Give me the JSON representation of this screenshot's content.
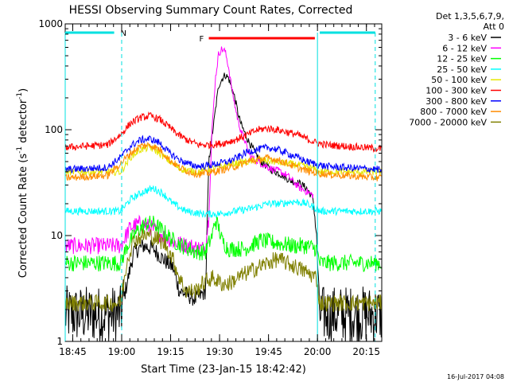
{
  "chart_data": {
    "type": "line",
    "title": "HESSI Observing Summary Count Rates, Corrected",
    "xlabel": "Start Time (23-Jan-15 18:42:42)",
    "ylabel_main": "Corrected Count Rate (s",
    "ylabel_sup1": "-1",
    "ylabel_mid": " detector",
    "ylabel_sup2": "-1",
    "ylabel_end": ")",
    "yscale": "log",
    "xlim_minutes": [
      0,
      97
    ],
    "ylim": [
      1,
      1000
    ],
    "x_ticks": [
      {
        "m": 2.3,
        "label": "18:45"
      },
      {
        "m": 17.3,
        "label": "19:00"
      },
      {
        "m": 32.3,
        "label": "19:15"
      },
      {
        "m": 47.3,
        "label": "19:30"
      },
      {
        "m": 62.3,
        "label": "19:45"
      },
      {
        "m": 77.3,
        "label": "20:00"
      },
      {
        "m": 92.3,
        "label": "20:15"
      }
    ],
    "y_ticks": [
      {
        "v": 1,
        "label": "1"
      },
      {
        "v": 10,
        "label": "10"
      },
      {
        "v": 100,
        "label": "100"
      },
      {
        "v": 1000,
        "label": "1000"
      }
    ],
    "legend_header": [
      "Det 1,3,5,6,7,9,",
      "Att 0"
    ],
    "series": [
      {
        "name": "3 - 6 keV",
        "color": "#000000",
        "points": [
          [
            0,
            1.8
          ],
          [
            17,
            1.8
          ],
          [
            18,
            2.6
          ],
          [
            21,
            7
          ],
          [
            24,
            8
          ],
          [
            27,
            7.5
          ],
          [
            30,
            6
          ],
          [
            33,
            5
          ],
          [
            35,
            3
          ],
          [
            40,
            2.5
          ],
          [
            43,
            3
          ],
          [
            44,
            50
          ],
          [
            46,
            150
          ],
          [
            47,
            260
          ],
          [
            48,
            300
          ],
          [
            49,
            330
          ],
          [
            50,
            310
          ],
          [
            52,
            200
          ],
          [
            53,
            140
          ],
          [
            54,
            110
          ],
          [
            56,
            80
          ],
          [
            58,
            62
          ],
          [
            60,
            50
          ],
          [
            63,
            42
          ],
          [
            66,
            38
          ],
          [
            69,
            33
          ],
          [
            72,
            31
          ],
          [
            74,
            28
          ],
          [
            75,
            25
          ],
          [
            76,
            22
          ],
          [
            77,
            10
          ],
          [
            78,
            1.8
          ],
          [
            97,
            1.8
          ]
        ]
      },
      {
        "name": "6 - 12 keV",
        "color": "#ff00ff",
        "points": [
          [
            0,
            8
          ],
          [
            17,
            8
          ],
          [
            20,
            12
          ],
          [
            23,
            13
          ],
          [
            26,
            12
          ],
          [
            30,
            10
          ],
          [
            34,
            8.5
          ],
          [
            38,
            8
          ],
          [
            42,
            7.5
          ],
          [
            43,
            8
          ],
          [
            44,
            15
          ],
          [
            45,
            100
          ],
          [
            46,
            300
          ],
          [
            47,
            520
          ],
          [
            48,
            580
          ],
          [
            49,
            550
          ],
          [
            50,
            400
          ],
          [
            51,
            250
          ],
          [
            52,
            170
          ],
          [
            53,
            120
          ],
          [
            54,
            95
          ],
          [
            55,
            80
          ],
          [
            56,
            62
          ],
          [
            57,
            55
          ],
          [
            60,
            48
          ],
          [
            63,
            43
          ],
          [
            66,
            40
          ],
          [
            68,
            37
          ],
          [
            70,
            32
          ],
          [
            72,
            28
          ],
          [
            74,
            26
          ],
          [
            75,
            25
          ],
          [
            76,
            24
          ]
        ]
      },
      {
        "name": "12 - 25 keV",
        "color": "#00ff00",
        "points": [
          [
            0,
            5.5
          ],
          [
            17,
            5.5
          ],
          [
            19,
            8
          ],
          [
            22,
            11
          ],
          [
            25,
            13
          ],
          [
            27,
            13
          ],
          [
            30,
            11
          ],
          [
            33,
            9
          ],
          [
            36,
            8
          ],
          [
            40,
            7
          ],
          [
            43,
            7
          ],
          [
            45,
            10
          ],
          [
            46,
            14
          ],
          [
            47,
            12
          ],
          [
            48,
            9
          ],
          [
            50,
            7.5
          ],
          [
            55,
            7.5
          ],
          [
            60,
            9
          ],
          [
            65,
            8.5
          ],
          [
            70,
            8
          ],
          [
            74,
            8
          ],
          [
            77,
            7.5
          ],
          [
            78,
            5.5
          ],
          [
            97,
            5.5
          ]
        ]
      },
      {
        "name": "25 - 50 keV",
        "color": "#00ffff",
        "points": [
          [
            0,
            17
          ],
          [
            17,
            17
          ],
          [
            20,
            22
          ],
          [
            24,
            26
          ],
          [
            27,
            28
          ],
          [
            30,
            25
          ],
          [
            33,
            20
          ],
          [
            37,
            17
          ],
          [
            42,
            16
          ],
          [
            47,
            16
          ],
          [
            52,
            17
          ],
          [
            57,
            18
          ],
          [
            62,
            20
          ],
          [
            66,
            20
          ],
          [
            70,
            21
          ],
          [
            74,
            20
          ],
          [
            77,
            18
          ],
          [
            78,
            17
          ],
          [
            97,
            17
          ]
        ]
      },
      {
        "name": "50 - 100 keV",
        "color": "#e6e600",
        "points": [
          [
            0,
            40
          ],
          [
            17,
            40
          ],
          [
            20,
            55
          ],
          [
            23,
            65
          ],
          [
            26,
            68
          ],
          [
            29,
            60
          ],
          [
            32,
            50
          ],
          [
            35,
            43
          ],
          [
            38,
            41
          ],
          [
            41,
            40
          ],
          [
            44,
            42
          ],
          [
            48,
            45
          ],
          [
            52,
            48
          ],
          [
            56,
            50
          ],
          [
            60,
            52
          ],
          [
            64,
            50
          ],
          [
            68,
            48
          ],
          [
            72,
            46
          ],
          [
            76,
            43
          ],
          [
            78,
            40
          ],
          [
            97,
            40
          ]
        ]
      },
      {
        "name": "100 - 300 keV",
        "color": "#ff0000",
        "points": [
          [
            0,
            68
          ],
          [
            13,
            72
          ],
          [
            17,
            90
          ],
          [
            20,
            115
          ],
          [
            23,
            130
          ],
          [
            26,
            135
          ],
          [
            29,
            125
          ],
          [
            32,
            105
          ],
          [
            35,
            88
          ],
          [
            38,
            78
          ],
          [
            41,
            72
          ],
          [
            44,
            72
          ],
          [
            48,
            74
          ],
          [
            52,
            80
          ],
          [
            56,
            90
          ],
          [
            59,
            100
          ],
          [
            62,
            103
          ],
          [
            65,
            100
          ],
          [
            68,
            95
          ],
          [
            71,
            90
          ],
          [
            74,
            82
          ],
          [
            77,
            75
          ],
          [
            80,
            72
          ],
          [
            97,
            66
          ]
        ]
      },
      {
        "name": "300 - 800 keV",
        "color": "#0000ff",
        "points": [
          [
            0,
            42
          ],
          [
            13,
            44
          ],
          [
            17,
            55
          ],
          [
            20,
            70
          ],
          [
            23,
            80
          ],
          [
            26,
            82
          ],
          [
            29,
            75
          ],
          [
            32,
            60
          ],
          [
            35,
            52
          ],
          [
            38,
            47
          ],
          [
            41,
            45
          ],
          [
            44,
            46
          ],
          [
            47,
            48
          ],
          [
            50,
            50
          ],
          [
            53,
            55
          ],
          [
            56,
            62
          ],
          [
            59,
            65
          ],
          [
            62,
            68
          ],
          [
            65,
            65
          ],
          [
            68,
            60
          ],
          [
            71,
            55
          ],
          [
            74,
            50
          ],
          [
            77,
            47
          ],
          [
            80,
            45
          ],
          [
            85,
            44
          ],
          [
            97,
            42
          ]
        ]
      },
      {
        "name": "800 - 7000 keV",
        "color": "#ff8c00",
        "points": [
          [
            0,
            35
          ],
          [
            13,
            37
          ],
          [
            17,
            48
          ],
          [
            20,
            60
          ],
          [
            23,
            70
          ],
          [
            26,
            72
          ],
          [
            29,
            65
          ],
          [
            32,
            52
          ],
          [
            35,
            44
          ],
          [
            38,
            40
          ],
          [
            41,
            38
          ],
          [
            44,
            39
          ],
          [
            47,
            41
          ],
          [
            50,
            43
          ],
          [
            53,
            46
          ],
          [
            56,
            50
          ],
          [
            59,
            52
          ],
          [
            62,
            54
          ],
          [
            65,
            52
          ],
          [
            68,
            48
          ],
          [
            71,
            44
          ],
          [
            74,
            41
          ],
          [
            77,
            39
          ],
          [
            80,
            38
          ],
          [
            85,
            37
          ],
          [
            97,
            35
          ]
        ]
      },
      {
        "name": "7000 - 20000 keV",
        "color": "#808000",
        "points": [
          [
            0,
            2.3
          ],
          [
            17,
            2.3
          ],
          [
            19,
            6
          ],
          [
            21,
            9
          ],
          [
            24,
            10
          ],
          [
            26,
            10
          ],
          [
            29,
            9
          ],
          [
            31,
            8
          ],
          [
            33,
            6
          ],
          [
            35,
            4
          ],
          [
            37,
            3
          ],
          [
            40,
            3
          ],
          [
            42,
            3.5
          ],
          [
            45,
            4
          ],
          [
            48,
            3.5
          ],
          [
            50,
            3.5
          ],
          [
            53,
            4
          ],
          [
            56,
            4.5
          ],
          [
            59,
            5
          ],
          [
            62,
            5.5
          ],
          [
            65,
            6
          ],
          [
            68,
            5.5
          ],
          [
            71,
            5
          ],
          [
            74,
            4.5
          ],
          [
            77,
            4
          ],
          [
            78,
            2.3
          ],
          [
            97,
            2.3
          ]
        ]
      }
    ],
    "segments": [
      {
        "label": "N",
        "color": "#00e0e0",
        "x0": 0,
        "x1": 15,
        "gap_x0": 17,
        "gap_x1": 17
      },
      {
        "label": "",
        "color": "#00e0e0",
        "x0": 78,
        "x1": 95
      }
    ],
    "flare_bar": {
      "label": "F",
      "color": "#ff0000",
      "x0": 44,
      "x1": 76.5
    },
    "vlines_minutes": [
      17.3,
      77.3,
      95
    ]
  },
  "timestamp": "16-Jul-2017 04:08"
}
